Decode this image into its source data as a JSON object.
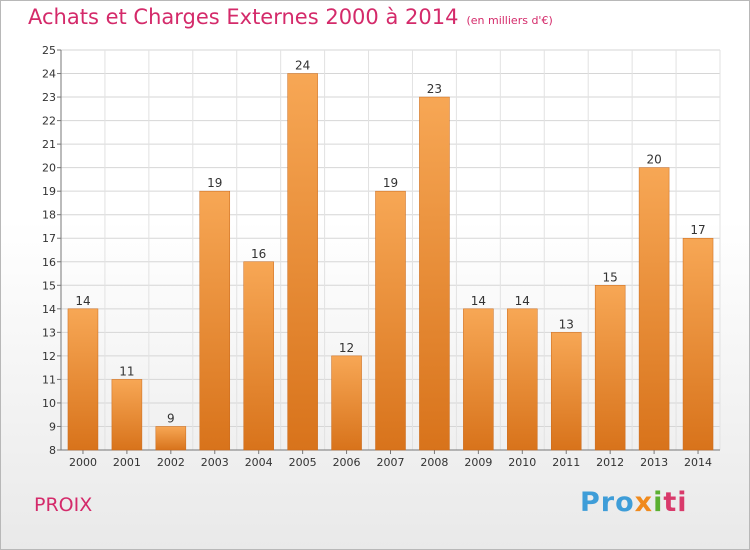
{
  "chart_data": {
    "type": "bar",
    "title": "Achats et Charges Externes 2000 à 2014",
    "unit_label": "(en milliers d'€)",
    "categories": [
      "2000",
      "2001",
      "2002",
      "2003",
      "2004",
      "2005",
      "2006",
      "2007",
      "2008",
      "2009",
      "2010",
      "2011",
      "2012",
      "2013",
      "2014"
    ],
    "values": [
      14,
      11,
      9,
      19,
      16,
      24,
      12,
      19,
      23,
      14,
      14,
      13,
      15,
      20,
      17
    ],
    "xlabel": "",
    "ylabel": "",
    "ylim": [
      8,
      25
    ],
    "yticks": [
      8,
      9,
      10,
      11,
      12,
      13,
      14,
      15,
      16,
      17,
      18,
      19,
      20,
      21,
      22,
      23,
      24,
      25
    ],
    "grid": true,
    "bar_color": "#f0892a"
  },
  "footer": {
    "place": "PROIX",
    "logo_parts": [
      "Pro",
      "x",
      "i",
      "ti"
    ]
  }
}
